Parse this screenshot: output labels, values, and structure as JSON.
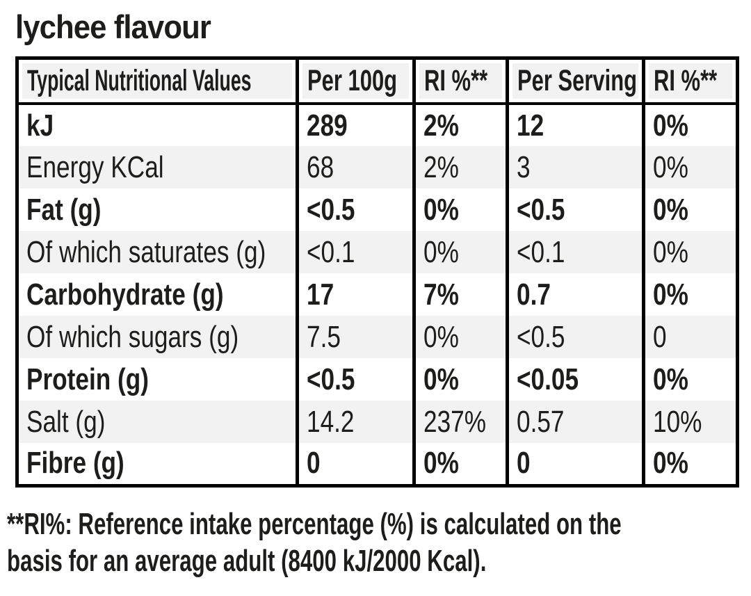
{
  "title": "lychee flavour",
  "table": {
    "headers": [
      "Typical Nutritional Values",
      "Per 100g",
      "RI %**",
      "Per Serving",
      "RI %**"
    ],
    "rows": [
      {
        "label": "kJ",
        "per_100g": "289",
        "ri_100g": "2%",
        "per_serving": "12",
        "ri_serving": "0%"
      },
      {
        "label": "Energy KCal",
        "per_100g": "68",
        "ri_100g": "2%",
        "per_serving": "3",
        "ri_serving": "0%"
      },
      {
        "label": "Fat (g)",
        "per_100g": "<0.5",
        "ri_100g": "0%",
        "per_serving": "<0.5",
        "ri_serving": "0%"
      },
      {
        "label": "Of which saturates (g)",
        "per_100g": "<0.1",
        "ri_100g": "0%",
        "per_serving": "<0.1",
        "ri_serving": "0%"
      },
      {
        "label": "Carbohydrate (g)",
        "per_100g": "17",
        "ri_100g": "7%",
        "per_serving": "0.7",
        "ri_serving": "0%"
      },
      {
        "label": "Of which sugars (g)",
        "per_100g": "7.5",
        "ri_100g": "0%",
        "per_serving": "<0.5",
        "ri_serving": "0"
      },
      {
        "label": "Protein (g)",
        "per_100g": "<0.5",
        "ri_100g": "0%",
        "per_serving": "<0.05",
        "ri_serving": "0%"
      },
      {
        "label": "Salt (g)",
        "per_100g": "14.2",
        "ri_100g": "237%",
        "per_serving": "0.57",
        "ri_serving": "10%"
      },
      {
        "label": "Fibre (g)",
        "per_100g": "0",
        "ri_100g": "0%",
        "per_serving": "0",
        "ri_serving": "0%"
      }
    ]
  },
  "footnote": {
    "line1": "**RI%: Reference intake percentage (%) is calculated on the",
    "line2": "basis for an average adult (8400 kJ/2000 Kcal)."
  },
  "colors": {
    "text": "#1d1d1b",
    "border": "#000000",
    "stripe": "#f2f2f2",
    "page_bg": "#ffffff"
  }
}
